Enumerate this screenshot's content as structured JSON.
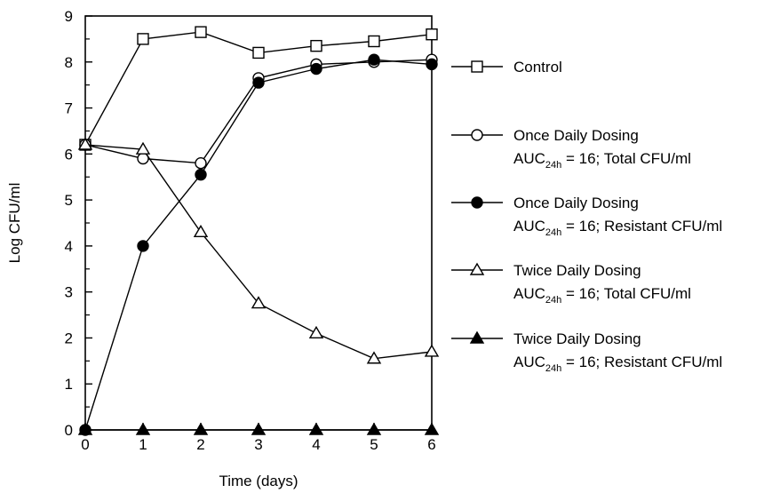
{
  "chart_data": {
    "type": "line",
    "xlabel": "Time (days)",
    "ylabel": "Log CFU/ml",
    "xlim": [
      0,
      6
    ],
    "ylim": [
      0,
      9
    ],
    "x": [
      0,
      1,
      2,
      3,
      4,
      5,
      6
    ],
    "xticks": [
      "0",
      "1",
      "2",
      "3",
      "4",
      "5",
      "6"
    ],
    "yticks": [
      "0",
      "1",
      "2",
      "3",
      "4",
      "5",
      "6",
      "7",
      "8",
      "9"
    ],
    "grid": false,
    "legend_position": "right",
    "series": [
      {
        "name": "Control",
        "marker": "open-square",
        "values": [
          6.2,
          8.5,
          8.65,
          8.2,
          8.35,
          8.45,
          8.6
        ],
        "legend": {
          "line1": "Control"
        }
      },
      {
        "name": "Once Daily Dosing AUC24h = 16; Total CFU/ml",
        "marker": "open-circle",
        "values": [
          6.2,
          5.9,
          5.8,
          7.65,
          7.95,
          8.0,
          8.05
        ],
        "legend": {
          "line1": "Once Daily Dosing",
          "auc": "AUC",
          "sub": "24h",
          "rest": " = 16; Total CFU/ml"
        }
      },
      {
        "name": "Once Daily Dosing AUC24h = 16; Resistant CFU/ml",
        "marker": "filled-circle",
        "values": [
          0.0,
          4.0,
          5.55,
          7.55,
          7.85,
          8.05,
          7.95
        ],
        "legend": {
          "line1": "Once Daily Dosing",
          "auc": "AUC",
          "sub": "24h",
          "rest": " = 16; Resistant CFU/ml"
        }
      },
      {
        "name": "Twice Daily Dosing AUC24h = 16; Total CFU/ml",
        "marker": "open-triangle",
        "values": [
          6.2,
          6.1,
          4.3,
          2.75,
          2.1,
          1.55,
          1.7
        ],
        "legend": {
          "line1": "Twice Daily Dosing",
          "auc": "AUC",
          "sub": "24h",
          "rest": " = 16; Total CFU/ml"
        }
      },
      {
        "name": "Twice Daily Dosing AUC24h = 16; Resistant CFU/ml",
        "marker": "filled-triangle",
        "values": [
          0.0,
          0.0,
          0.0,
          0.0,
          0.0,
          0.0,
          0.0
        ],
        "legend": {
          "line1": "Twice Daily Dosing",
          "auc": "AUC",
          "sub": "24h",
          "rest": " = 16; Resistant CFU/ml"
        }
      }
    ]
  }
}
